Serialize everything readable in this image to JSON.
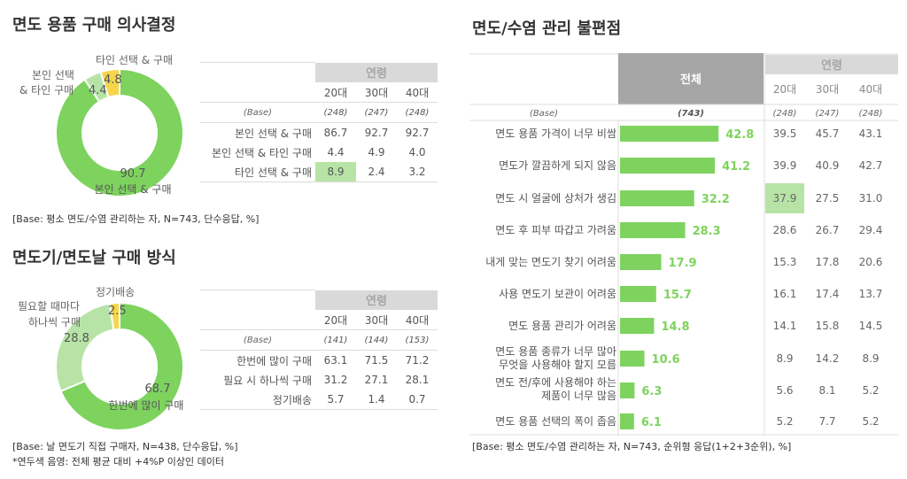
{
  "colors": {
    "green": "#7ed35f",
    "light_green": "#b7e4a6",
    "yellow": "#f5d64a",
    "header_gray": "#d9d9d9",
    "total_header": "#a6a6a6"
  },
  "sec1": {
    "title": "면도 용품 구매 의사결정",
    "col_group": "연령",
    "col_ages": [
      "20대",
      "30대",
      "40대"
    ],
    "base_label": "(Base)",
    "base_values": [
      "(248)",
      "(247)",
      "(248)"
    ],
    "rows": [
      {
        "label": "본인 선택 & 구매",
        "values": [
          "86.7",
          "92.7",
          "92.7"
        ]
      },
      {
        "label": "본인 선택 & 타인 구매",
        "values": [
          "4.4",
          "4.9",
          "4.0"
        ]
      },
      {
        "label": "타인 선택 & 구매",
        "values": [
          "8.9",
          "2.4",
          "3.2"
        ]
      }
    ],
    "base_note": "[Base: 평소 면도/수염 관리하는 자, N=743, 단수응답, %]"
  },
  "sec2": {
    "title": "면도기/면도날 구매 방식",
    "col_group": "연령",
    "col_ages": [
      "20대",
      "30대",
      "40대"
    ],
    "base_label": "(Base)",
    "base_values": [
      "(141)",
      "(144)",
      "(153)"
    ],
    "rows": [
      {
        "label": "한번에 많이 구매",
        "values": [
          "63.1",
          "71.5",
          "71.2"
        ]
      },
      {
        "label": "필요 시 하나씩 구매",
        "values": [
          "31.2",
          "27.1",
          "28.1"
        ]
      },
      {
        "label": "정기배송",
        "values": [
          "5.7",
          "1.4",
          "0.7"
        ]
      }
    ],
    "base_note": "[Base: 날 면도기 직접 구매자, N=438, 단수응답, %]",
    "footnote": "*연두색 음영: 전체 평균 대비 +4%P 이상인 데이터"
  },
  "sec3": {
    "title": "면도/수염 관리 불편점",
    "total_label": "전체",
    "col_group": "연령",
    "col_ages": [
      "20대",
      "30대",
      "40대"
    ],
    "base_label": "(Base)",
    "base_total": "(743)",
    "base_values": [
      "(248)",
      "(247)",
      "(248)"
    ],
    "rows": [
      {
        "label": "면도 용품 가격이 너무 비쌈",
        "values": [
          "39.5",
          "45.7",
          "43.1"
        ]
      },
      {
        "label": "면도가 깔끔하게 되지 않음",
        "values": [
          "39.9",
          "40.9",
          "42.7"
        ]
      },
      {
        "label": "면도 시 얼굴에 상처가 생김",
        "values": [
          "37.9",
          "27.5",
          "31.0"
        ]
      },
      {
        "label": "면도 후 피부 따갑고 가려움",
        "values": [
          "28.6",
          "26.7",
          "29.4"
        ]
      },
      {
        "label": "내게 맞는 면도기 찾기 어려움",
        "values": [
          "15.3",
          "17.8",
          "20.6"
        ]
      },
      {
        "label": "사용 면도기 보관이 어려움",
        "values": [
          "16.1",
          "17.4",
          "13.7"
        ]
      },
      {
        "label": "면도 용품 관리가 어려움",
        "values": [
          "14.1",
          "15.8",
          "14.5"
        ]
      },
      {
        "label": "면도 용품 종류가 너무 많아",
        "label2": "무엇을 사용해야 할지 모름",
        "values": [
          "8.9",
          "14.2",
          "8.9"
        ]
      },
      {
        "label": "면도 전/후에 사용해야 하는",
        "label2": "제품이 너무 많음",
        "values": [
          "5.6",
          "8.1",
          "5.2"
        ]
      },
      {
        "label": "면도 용품 선택의 폭이 좁음",
        "values": [
          "5.2",
          "7.7",
          "5.2"
        ]
      }
    ],
    "base_note": "[Base: 평소 면도/수염 관리하는 자, N=743, 순위형 응답(1+2+3순위), %]"
  },
  "chart_data": [
    {
      "type": "pie",
      "title": "면도 용품 구매 의사결정",
      "labels": [
        "본인 선택 & 구매",
        "본인 선택 & 타인 구매",
        "타인 선택 & 구매"
      ],
      "values": [
        90.7,
        4.4,
        4.8
      ]
    },
    {
      "type": "pie",
      "title": "면도기/면도날 구매 방식",
      "labels": [
        "한번에 많이 구매",
        "필요할 때마다 하나씩 구매",
        "정기배송"
      ],
      "values": [
        68.7,
        28.8,
        2.5
      ]
    },
    {
      "type": "bar",
      "title": "면도/수염 관리 불편점",
      "orientation": "horizontal",
      "categories": [
        "면도 용품 가격이 너무 비쌈",
        "면도가 깔끔하게 되지 않음",
        "면도 시 얼굴에 상처가 생김",
        "면도 후 피부 따갑고 가려움",
        "내게 맞는 면도기 찾기 어려움",
        "사용 면도기 보관이 어려움",
        "면도 용품 관리가 어려움",
        "면도 용품 종류가 너무 많아 무엇을 사용해야 할지 모름",
        "면도 전/후에 사용해야 하는 제품이 너무 많음",
        "면도 용품 선택의 폭이 좁음"
      ],
      "series": [
        {
          "name": "전체",
          "values": [
            42.8,
            41.2,
            32.2,
            28.3,
            17.9,
            15.7,
            14.8,
            10.6,
            6.3,
            6.1
          ]
        }
      ]
    }
  ],
  "donut1": {
    "labels": [
      {
        "name": "본인 선택 & 구매",
        "value": "90.7"
      },
      {
        "name1": "본인 선택",
        "name2": "& 타인 구매",
        "value": "4.4"
      },
      {
        "name": "타인 선택 & 구매",
        "value": "4.8"
      }
    ]
  },
  "donut2": {
    "labels": [
      {
        "name": "한번에 많이 구매",
        "value": "68.7"
      },
      {
        "name1": "필요할 때마다",
        "name2": "하나씩 구매",
        "value": "28.8"
      },
      {
        "name": "정기배송",
        "value": "2.5"
      }
    ]
  }
}
